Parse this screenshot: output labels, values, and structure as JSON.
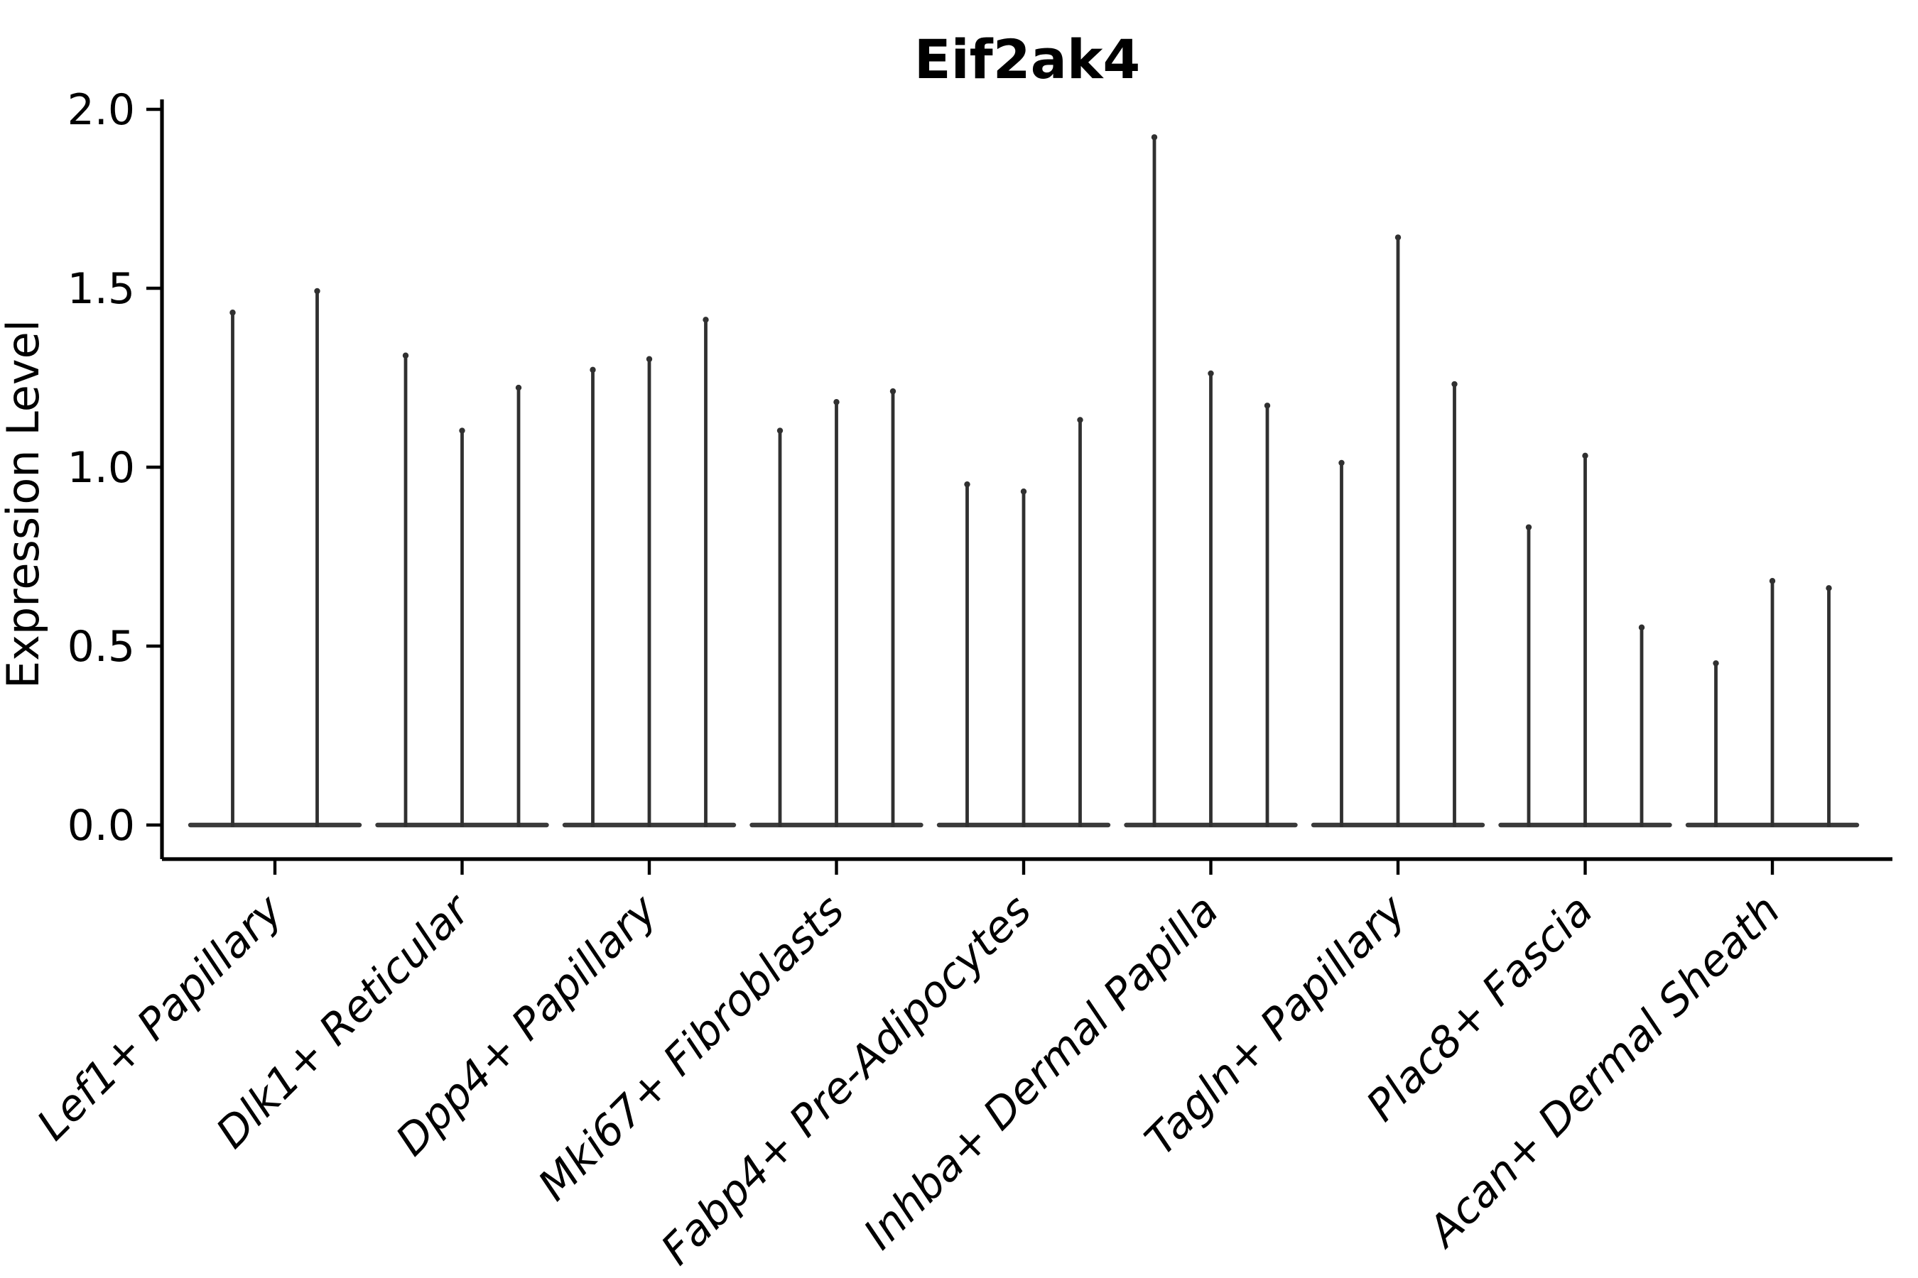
{
  "chart_data": {
    "type": "violin",
    "title": "Eif2ak4",
    "xlabel": "",
    "ylabel": "Expression Level",
    "ylim": [
      0,
      2.0
    ],
    "yticks": [
      0.0,
      0.5,
      1.0,
      1.5,
      2.0
    ],
    "ytick_labels": [
      "0.0",
      "0.5",
      "1.0",
      "1.5",
      "2.0"
    ],
    "grid": false,
    "legend": "none",
    "categories": [
      "Lef1+ Papillary",
      "Dlk1+ Reticular",
      "Dpp4+ Papillary",
      "Mki67+ Fibroblasts",
      "Fabp4+ Pre-Adipocytes",
      "Inhba+ Dermal Papilla",
      "Tagln+ Papillary",
      "Plac8+ Fascia",
      "Acan+ Dermal Sheath"
    ],
    "groups": [
      {
        "category": "Lef1+ Papillary",
        "spike_maxima": [
          1.44,
          1.5
        ]
      },
      {
        "category": "Dlk1+ Reticular",
        "spike_maxima": [
          1.32,
          1.11,
          1.23
        ]
      },
      {
        "category": "Dpp4+ Papillary",
        "spike_maxima": [
          1.28,
          1.31,
          1.42
        ]
      },
      {
        "category": "Mki67+ Fibroblasts",
        "spike_maxima": [
          1.11,
          1.19,
          1.22
        ]
      },
      {
        "category": "Fabp4+ Pre-Adipocytes",
        "spike_maxima": [
          0.96,
          0.94,
          1.14
        ]
      },
      {
        "category": "Inhba+ Dermal Papilla",
        "spike_maxima": [
          1.93,
          1.27,
          1.18
        ]
      },
      {
        "category": "Tagln+ Papillary",
        "spike_maxima": [
          1.02,
          1.65,
          1.24
        ]
      },
      {
        "category": "Plac8+ Fascia",
        "spike_maxima": [
          0.84,
          1.04,
          0.56
        ]
      },
      {
        "category": "Acan+ Dermal Sheath",
        "spike_maxima": [
          0.46,
          0.69,
          0.67
        ]
      }
    ],
    "violin_shape_note": "Each violin is an extremely thin spike: nearly all density sits at expression 0 (flat body along the baseline), with a hairline spike rising to the max expression value.",
    "style": {
      "background": "#ffffff",
      "violin_color": "#303030",
      "baseline_color": "#3a3a3a",
      "axis_color": "#000000",
      "text_color": "#000000"
    }
  }
}
